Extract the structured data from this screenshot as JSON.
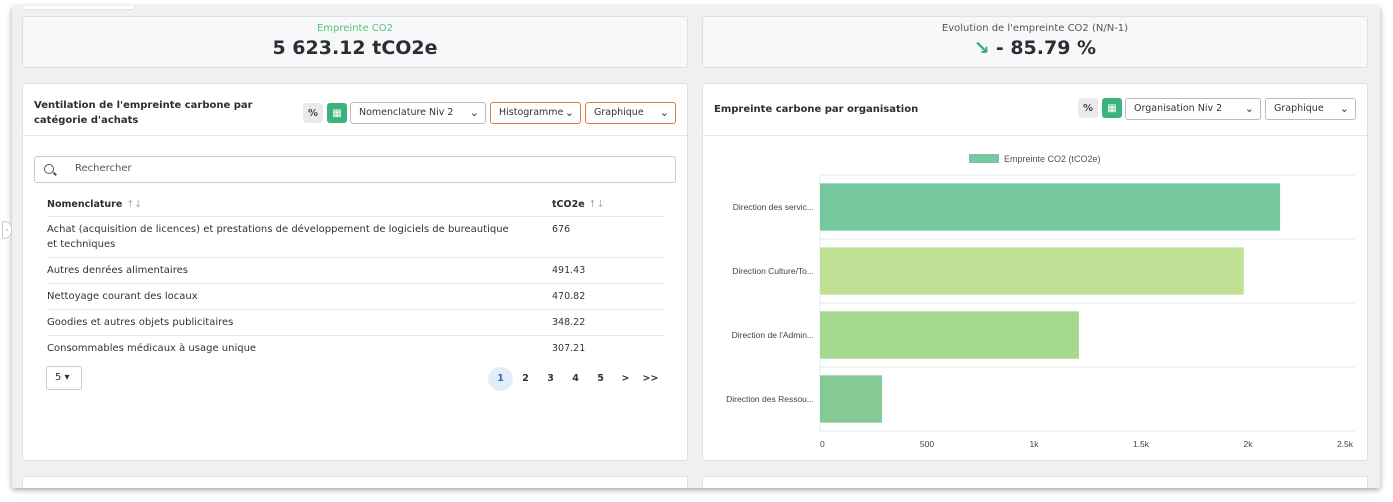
{
  "kpis": {
    "footprint_label": "Empreinte CO2",
    "footprint_value": "5 623.12 tCO2e",
    "evolution_label": "Evolution de l'empreinte CO2 (N/N-1)",
    "evolution_value": "- 85.79 %",
    "evolution_icon": "arrow-down-right-icon",
    "evolution_color": "#3aaa8a"
  },
  "left_panel": {
    "title": "Ventilation de l'empreinte carbone par catégorie d'achats",
    "percent_button": "%",
    "excel_icon": "excel-export-icon",
    "nomenclature_select": "Nomenclature Niv 2",
    "chart_type_select": "Histogramme",
    "view_select": "Graphique",
    "search_placeholder": "Rechercher",
    "columns": [
      {
        "label": "Nomenclature",
        "sort": "↑↓"
      },
      {
        "label": "tCO2e",
        "sort": "↑↓"
      }
    ],
    "rows": [
      {
        "name": "Achat (acquisition de licences) et prestations de développement de logiciels de bureautique et techniques",
        "value": "676"
      },
      {
        "name": "Autres denrées alimentaires",
        "value": "491.43"
      },
      {
        "name": "Nettoyage courant des locaux",
        "value": "470.82"
      },
      {
        "name": "Goodies et autres objets publicitaires",
        "value": "348.22"
      },
      {
        "name": "Consommables médicaux à usage unique",
        "value": "307.21"
      }
    ],
    "page_size": "5 ▾",
    "pages": [
      "1",
      "2",
      "3",
      "4",
      "5",
      ">",
      ">>"
    ],
    "active_page": "1"
  },
  "right_panel": {
    "title": "Empreinte carbone par organisation",
    "percent_button": "%",
    "excel_icon": "excel-export-icon",
    "org_select": "Organisation Niv 2",
    "view_select": "Graphique"
  },
  "chart_data": {
    "type": "bar",
    "orientation": "horizontal",
    "categories": [
      "Direction des servic...",
      "Direction Culture/To...",
      "Direction de l'Admin...",
      "Direction des Ressou..."
    ],
    "series": [
      {
        "name": "Empreinte CO2 (tCO2e)",
        "values": [
          2150,
          1980,
          1210,
          290
        ]
      }
    ],
    "bar_colors": [
      "#76c99e",
      "#bfe095",
      "#a3d98c",
      "#85c994"
    ],
    "legend_color": "#76c99e",
    "xlim": [
      0,
      2500
    ],
    "xticks": [
      "0",
      "500",
      "1k",
      "1.5k",
      "2k",
      "2.5k"
    ],
    "xtick_values": [
      0,
      500,
      1000,
      1500,
      2000,
      2500
    ],
    "legend": "top",
    "grid": true
  }
}
